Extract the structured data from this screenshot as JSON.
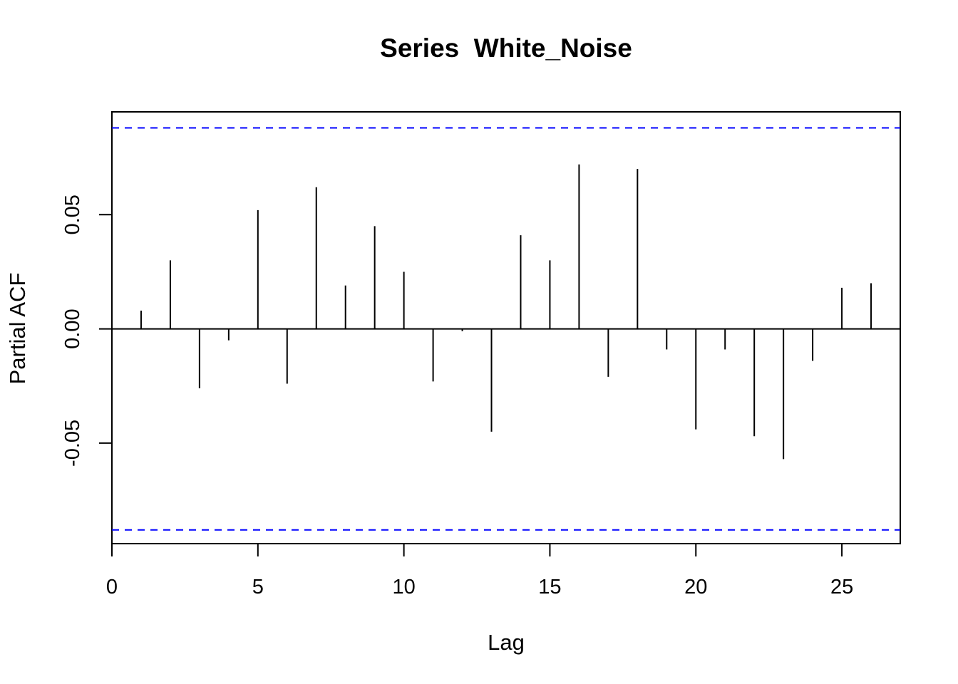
{
  "chart_data": {
    "type": "bar",
    "title": "Series  White_Noise",
    "xlabel": "Lag",
    "ylabel": "Partial ACF",
    "xlim": [
      0,
      27
    ],
    "ylim": [
      -0.094,
      0.095
    ],
    "x_ticks": [
      0,
      5,
      10,
      15,
      20,
      25
    ],
    "x_tick_labels": [
      "0",
      "5",
      "10",
      "15",
      "20",
      "25"
    ],
    "y_ticks": [
      -0.05,
      0.0,
      0.05
    ],
    "y_tick_labels": [
      "-0.05",
      "0.00",
      "0.05"
    ],
    "grid": false,
    "zero_line": 0,
    "confidence_bounds": [
      -0.088,
      0.088
    ],
    "confidence_color": "#0000ff",
    "bar_color": "#000000",
    "lags": [
      1,
      2,
      3,
      4,
      5,
      6,
      7,
      8,
      9,
      10,
      11,
      12,
      13,
      14,
      15,
      16,
      17,
      18,
      19,
      20,
      21,
      22,
      23,
      24,
      25,
      26
    ],
    "values": [
      0.008,
      0.03,
      -0.026,
      -0.005,
      0.052,
      -0.024,
      0.062,
      0.019,
      0.045,
      0.025,
      -0.023,
      -0.001,
      -0.045,
      0.041,
      0.03,
      0.072,
      -0.021,
      0.07,
      -0.009,
      -0.044,
      -0.009,
      -0.047,
      -0.057,
      -0.014,
      0.018,
      0.02
    ]
  }
}
